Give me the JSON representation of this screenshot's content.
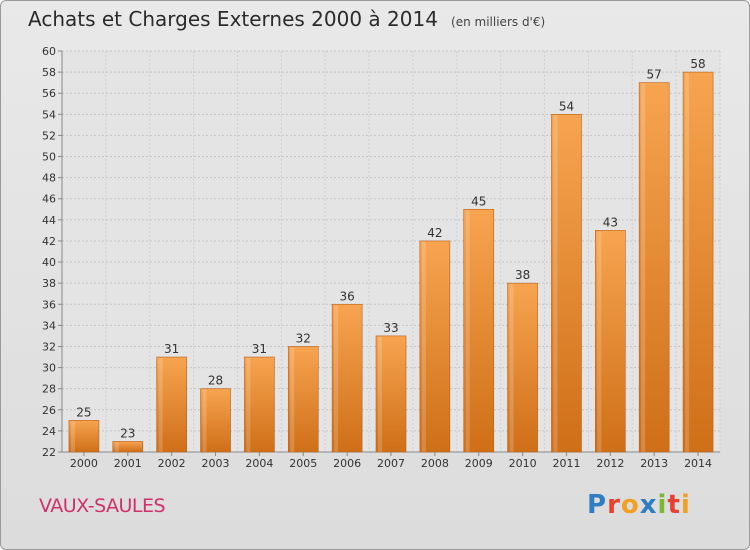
{
  "header": {
    "title": "Achats et Charges Externes 2000 à 2014",
    "unit": "(en milliers d'€)"
  },
  "footer": {
    "location": "VAUX-SAULES",
    "logo_text": "Proxiti",
    "logo_letters": [
      {
        "ch": "P",
        "color": "#2f7dc2"
      },
      {
        "ch": "r",
        "color": "#e8402e"
      },
      {
        "ch": "o",
        "color": "#f0a022"
      },
      {
        "ch": "x",
        "color": "#2f7dc2"
      },
      {
        "ch": "i",
        "color": "#7ab82f"
      },
      {
        "ch": "t",
        "color": "#e8402e"
      },
      {
        "ch": "i",
        "color": "#f0a022"
      }
    ]
  },
  "chart_data": {
    "type": "bar",
    "categories": [
      "2000",
      "2001",
      "2002",
      "2003",
      "2004",
      "2005",
      "2006",
      "2007",
      "2008",
      "2009",
      "2010",
      "2011",
      "2012",
      "2013",
      "2014"
    ],
    "values": [
      25,
      23,
      31,
      28,
      31,
      32,
      36,
      33,
      42,
      45,
      38,
      54,
      43,
      57,
      58
    ],
    "ylim": [
      22,
      60
    ],
    "yticks": [
      22,
      24,
      26,
      28,
      30,
      32,
      34,
      36,
      38,
      40,
      42,
      44,
      46,
      48,
      50,
      52,
      54,
      56,
      58,
      60
    ],
    "grid": true,
    "bar_color_top": "#f7a450",
    "bar_color_bottom": "#cf6f18"
  }
}
